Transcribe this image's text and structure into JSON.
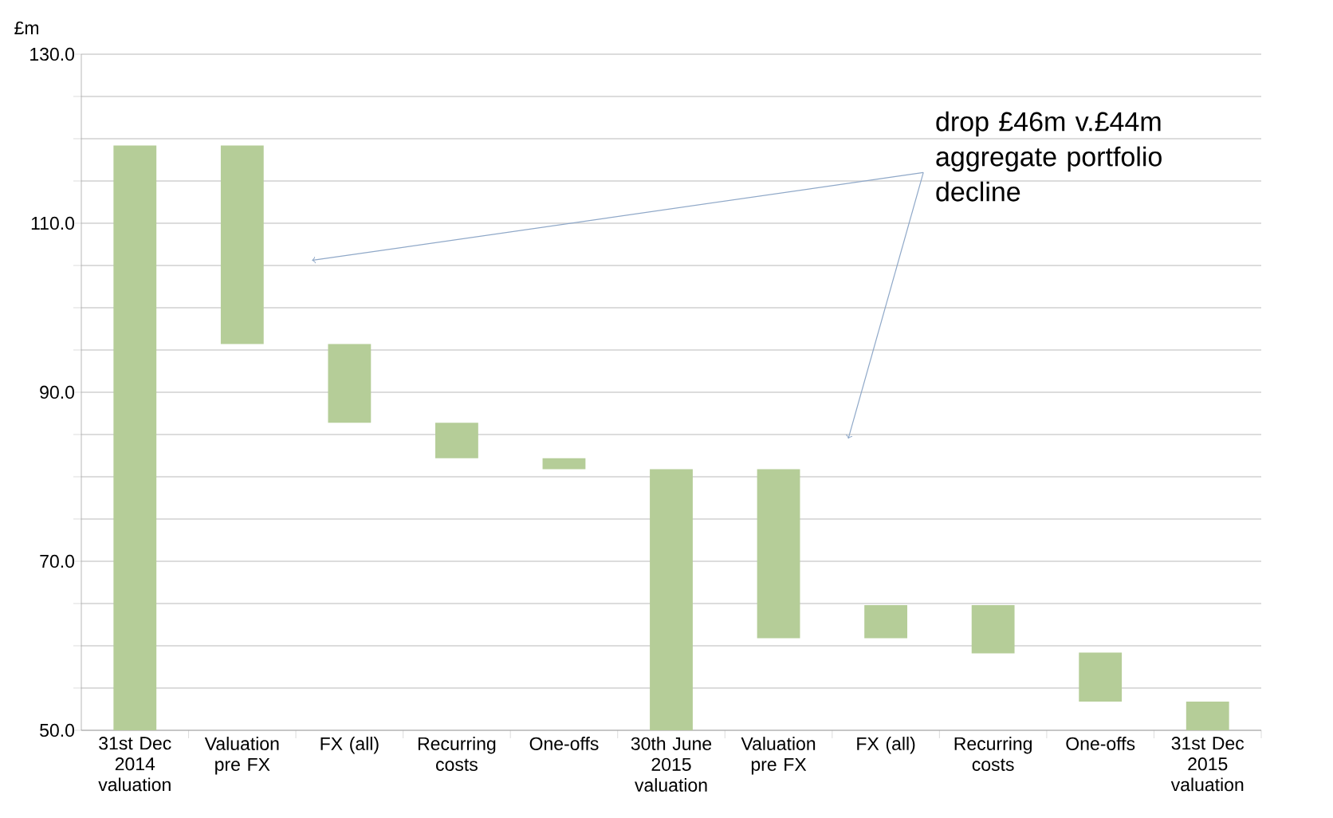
{
  "chart_data": {
    "type": "bar",
    "ylabel": "£m",
    "categories": [
      "31st Dec 2014 valuation",
      "Valuation pre FX",
      "FX (all)",
      "Recurring costs",
      "One-offs",
      "30th June 2015 valuation",
      "Valuation pre FX",
      "FX (all)",
      "Recurring costs",
      "One-offs",
      "31st Dec 2015 valuation"
    ],
    "values": [
      69.2,
      23.5,
      9.3,
      4.2,
      1.3,
      30.9,
      20.0,
      3.9,
      5.7,
      5.8,
      3.4
    ],
    "base": [
      50,
      95.7,
      86.4,
      82.2,
      80.9,
      50,
      60.9,
      60.9,
      59.1,
      53.4,
      50
    ],
    "color": "#b5cd98",
    "ylim": [
      50,
      130
    ],
    "yticks": [
      {
        "value": 50,
        "label": "50.0"
      },
      {
        "value": 55,
        "label": null
      },
      {
        "value": 60,
        "label": null
      },
      {
        "value": 65,
        "label": null
      },
      {
        "value": 70,
        "label": "70.0"
      },
      {
        "value": 75,
        "label": null
      },
      {
        "value": 80,
        "label": null
      },
      {
        "value": 85,
        "label": null
      },
      {
        "value": 90,
        "label": "90.0"
      },
      {
        "value": 95,
        "label": null
      },
      {
        "value": 100,
        "label": null
      },
      {
        "value": 105,
        "label": null
      },
      {
        "value": 110,
        "label": "110.0"
      },
      {
        "value": 115,
        "label": null
      },
      {
        "value": 120,
        "label": null
      },
      {
        "value": 125,
        "label": null
      },
      {
        "value": 130,
        "label": "130.0"
      }
    ],
    "grid": "y",
    "annotations": [
      "drop £46m v.£44m aggregate portfolio decline"
    ]
  }
}
